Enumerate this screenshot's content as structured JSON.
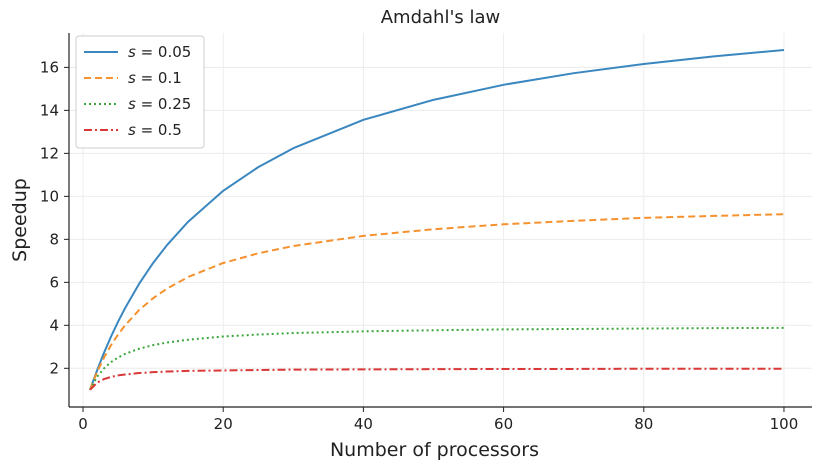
{
  "chart_data": {
    "type": "line",
    "title": "Amdahl's law",
    "xlabel": "Number of processors",
    "ylabel": "Speedup",
    "xlim": [
      -2,
      104
    ],
    "ylim": [
      0.2,
      17.6
    ],
    "xticks": [
      0,
      20,
      40,
      60,
      80,
      100
    ],
    "yticks": [
      2,
      4,
      6,
      8,
      10,
      12,
      14,
      16
    ],
    "grid": true,
    "legend_position": "top-left",
    "x": [
      1,
      2,
      3,
      4,
      5,
      6,
      8,
      10,
      12,
      15,
      20,
      25,
      30,
      40,
      50,
      60,
      70,
      80,
      90,
      100
    ],
    "series": [
      {
        "name": "s = 0.05",
        "symbol": "s",
        "value_label": " = 0.05",
        "color": "#3a87c0",
        "dash": "solid",
        "values": [
          1.0,
          1.9,
          2.73,
          3.48,
          4.17,
          4.8,
          5.93,
          6.9,
          7.74,
          8.82,
          10.26,
          11.36,
          12.24,
          13.56,
          14.49,
          15.19,
          15.73,
          16.16,
          16.51,
          16.81
        ]
      },
      {
        "name": "s = 0.1",
        "symbol": "s",
        "value_label": " = 0.1",
        "color": "#f5922f",
        "dash": "dashed",
        "values": [
          1.0,
          1.82,
          2.5,
          3.08,
          3.57,
          4.0,
          4.71,
          5.26,
          5.71,
          6.25,
          6.9,
          7.35,
          7.69,
          8.16,
          8.47,
          8.7,
          8.86,
          9.0,
          9.09,
          9.17
        ]
      },
      {
        "name": "s = 0.25",
        "symbol": "s",
        "value_label": " = 0.25",
        "color": "#3aa63a",
        "dash": "dotted",
        "values": [
          1.0,
          1.6,
          2.0,
          2.29,
          2.5,
          2.67,
          2.91,
          3.08,
          3.2,
          3.33,
          3.48,
          3.57,
          3.64,
          3.72,
          3.77,
          3.81,
          3.83,
          3.85,
          3.87,
          3.88
        ]
      },
      {
        "name": "s = 0.5",
        "symbol": "s",
        "value_label": " = 0.5",
        "color": "#d93838",
        "dash": "dashdot",
        "values": [
          1.0,
          1.33,
          1.5,
          1.6,
          1.67,
          1.71,
          1.78,
          1.82,
          1.85,
          1.88,
          1.9,
          1.92,
          1.94,
          1.95,
          1.96,
          1.97,
          1.97,
          1.98,
          1.98,
          1.98
        ]
      }
    ]
  }
}
